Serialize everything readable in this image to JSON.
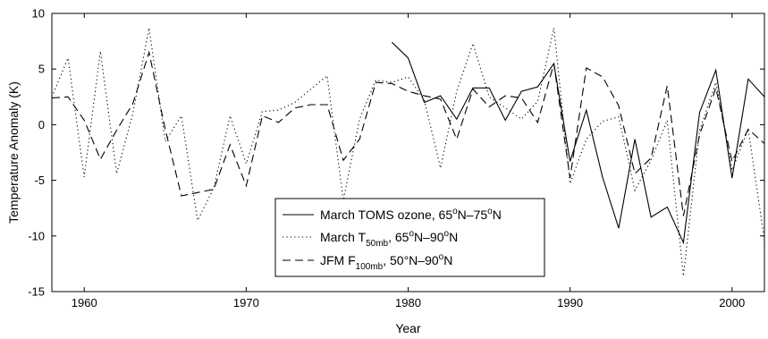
{
  "chart_data": {
    "type": "line",
    "title": "",
    "xlabel": "Year",
    "ylabel": "Temperature Anomaly (K)",
    "xlim": [
      1958,
      2002
    ],
    "ylim": [
      -15,
      10
    ],
    "xticks": [
      "1960",
      "1970",
      "1980",
      "1990",
      "2000"
    ],
    "yticks": [
      "10",
      "5",
      "0",
      "-5",
      "-10",
      "-15"
    ],
    "xtick_values": [
      1960,
      1970,
      1980,
      1990,
      2000
    ],
    "ytick_values": [
      10,
      5,
      0,
      -5,
      -10,
      -15
    ],
    "grid": false,
    "legend_position": "bottom-center",
    "series": [
      {
        "name": "March TOMS ozone, 65°N–75°N",
        "legend": {
          "main": "March TOMS ozone, 65",
          "sup1": "o",
          "mid": "N–75",
          "sup2": "o",
          "end": "N"
        },
        "style": "solid",
        "x": [
          1979,
          1980,
          1981,
          1982,
          1983,
          1984,
          1985,
          1986,
          1987,
          1988,
          1989,
          1990,
          1991,
          1992,
          1993,
          1994,
          1995,
          1996,
          1997,
          1998,
          1999,
          2000,
          2001,
          2002
        ],
        "y": [
          7.4,
          6.0,
          2.0,
          2.6,
          0.5,
          3.3,
          3.3,
          0.4,
          3.0,
          3.4,
          5.5,
          -3.3,
          1.3,
          -4.7,
          -9.3,
          -1.3,
          -8.3,
          -7.4,
          -10.6,
          1.1,
          4.9,
          -4.8,
          4.1,
          2.5
        ]
      },
      {
        "name": "March T50mb, 65°N–90°N",
        "legend": {
          "main": "March T",
          "sub": "50mb",
          "after": ", 65",
          "sup1": "o",
          "mid": "N–90",
          "sup2": "o",
          "end": "N"
        },
        "style": "dotted",
        "x": [
          1958,
          1959,
          1960,
          1961,
          1962,
          1963,
          1964,
          1965,
          1966,
          1967,
          1968,
          1969,
          1970,
          1971,
          1972,
          1973,
          1974,
          1975,
          1976,
          1977,
          1978,
          1979,
          1980,
          1981,
          1982,
          1983,
          1984,
          1985,
          1986,
          1987,
          1988,
          1989,
          1990,
          1991,
          1992,
          1993,
          1994,
          1995,
          1996,
          1997,
          1998,
          1999,
          2000,
          2001,
          2002
        ],
        "y": [
          2.5,
          6.0,
          -4.7,
          6.6,
          -4.4,
          1.0,
          8.7,
          -1.5,
          0.8,
          -8.6,
          -5.7,
          0.8,
          -3.5,
          1.2,
          1.3,
          2.0,
          3.2,
          4.4,
          -6.8,
          0.5,
          4.0,
          3.8,
          4.3,
          2.2,
          -3.9,
          3.0,
          7.3,
          2.5,
          1.5,
          0.5,
          2.1,
          8.7,
          -5.3,
          -1.3,
          0.3,
          0.7,
          -5.9,
          -3.2,
          0.4,
          -13.6,
          -0.5,
          3.8,
          -4.1,
          -0.4,
          -10.4
        ]
      },
      {
        "name": "JFM F100mb, 50°N–90°N",
        "legend": {
          "main": "JFM F",
          "sub": "100mb",
          "after": ", 50°N–90",
          "sup1": "",
          "mid": "",
          "sup2": "o",
          "end": "N"
        },
        "style": "dashed",
        "x": [
          1958,
          1959,
          1960,
          1961,
          1962,
          1963,
          1964,
          1965,
          1966,
          1967,
          1968,
          1969,
          1970,
          1971,
          1972,
          1973,
          1974,
          1975,
          1976,
          1977,
          1978,
          1979,
          1980,
          1981,
          1982,
          1983,
          1984,
          1985,
          1986,
          1987,
          1988,
          1989,
          1990,
          1991,
          1992,
          1993,
          1994,
          1995,
          1996,
          1997,
          1998,
          1999,
          2000,
          2001,
          2002
        ],
        "y": [
          2.4,
          2.5,
          0.4,
          -3.1,
          -0.5,
          1.9,
          6.5,
          -0.4,
          -6.4,
          -6.1,
          -5.8,
          -1.8,
          -5.5,
          0.8,
          0.2,
          1.5,
          1.8,
          1.8,
          -3.2,
          -1.3,
          3.8,
          3.7,
          3.0,
          2.6,
          2.3,
          -1.3,
          3.2,
          1.6,
          2.6,
          2.4,
          0.2,
          5.5,
          -4.8,
          5.1,
          4.3,
          1.7,
          -4.4,
          -3.0,
          3.5,
          -8.2,
          -0.9,
          3.3,
          -3.3,
          -0.4,
          -1.7
        ]
      }
    ]
  }
}
